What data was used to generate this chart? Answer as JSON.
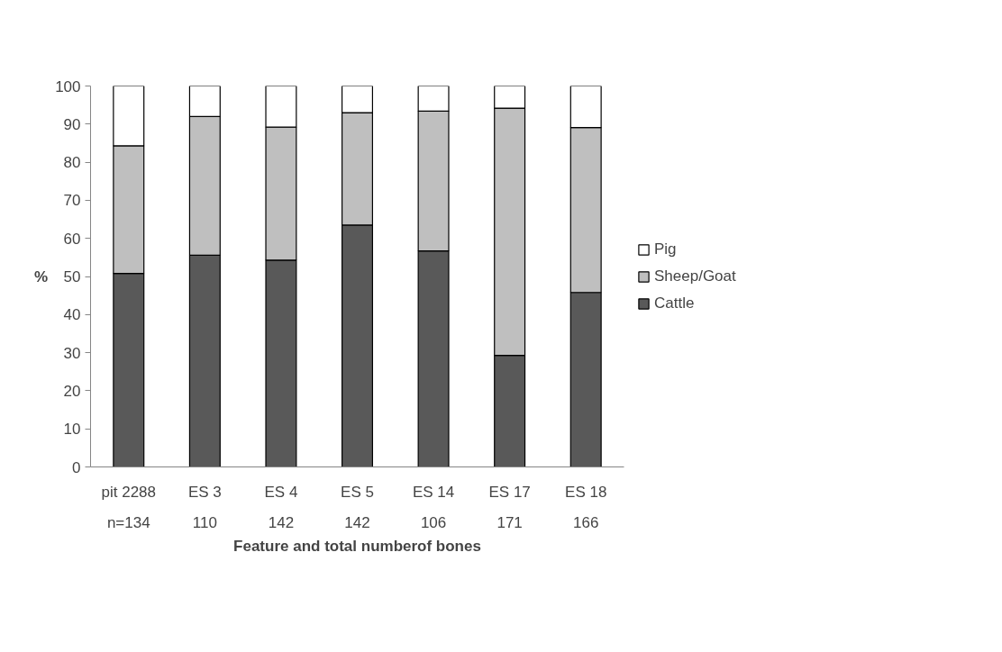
{
  "chart_data": {
    "type": "bar",
    "stacked": true,
    "xlabel": "Feature and total numberof bones",
    "ylabel": "%",
    "categories": [
      "pit 2288\nn=134",
      "ES 3\n110",
      "ES 4\n142",
      "ES 5\n142",
      "ES 14\n106",
      "ES 17\n171",
      "ES 18\n166"
    ],
    "series": [
      {
        "name": "Cattle",
        "color": "#595959",
        "values": [
          50.8,
          55.6,
          54.3,
          63.5,
          56.7,
          29.3,
          45.8
        ]
      },
      {
        "name": "Sheep/Goat",
        "color": "#bfbfbf",
        "values": [
          33.5,
          36.4,
          34.9,
          29.5,
          36.7,
          64.9,
          43.3
        ]
      },
      {
        "name": "Pig",
        "color": "#ffffff",
        "values": [
          15.7,
          8.0,
          10.8,
          7.0,
          6.6,
          5.8,
          10.9
        ]
      }
    ],
    "ylim": [
      0,
      100
    ],
    "yticks": [
      0,
      10,
      20,
      30,
      40,
      50,
      60,
      70,
      80,
      90,
      100
    ],
    "grid": false,
    "legend": "right"
  }
}
